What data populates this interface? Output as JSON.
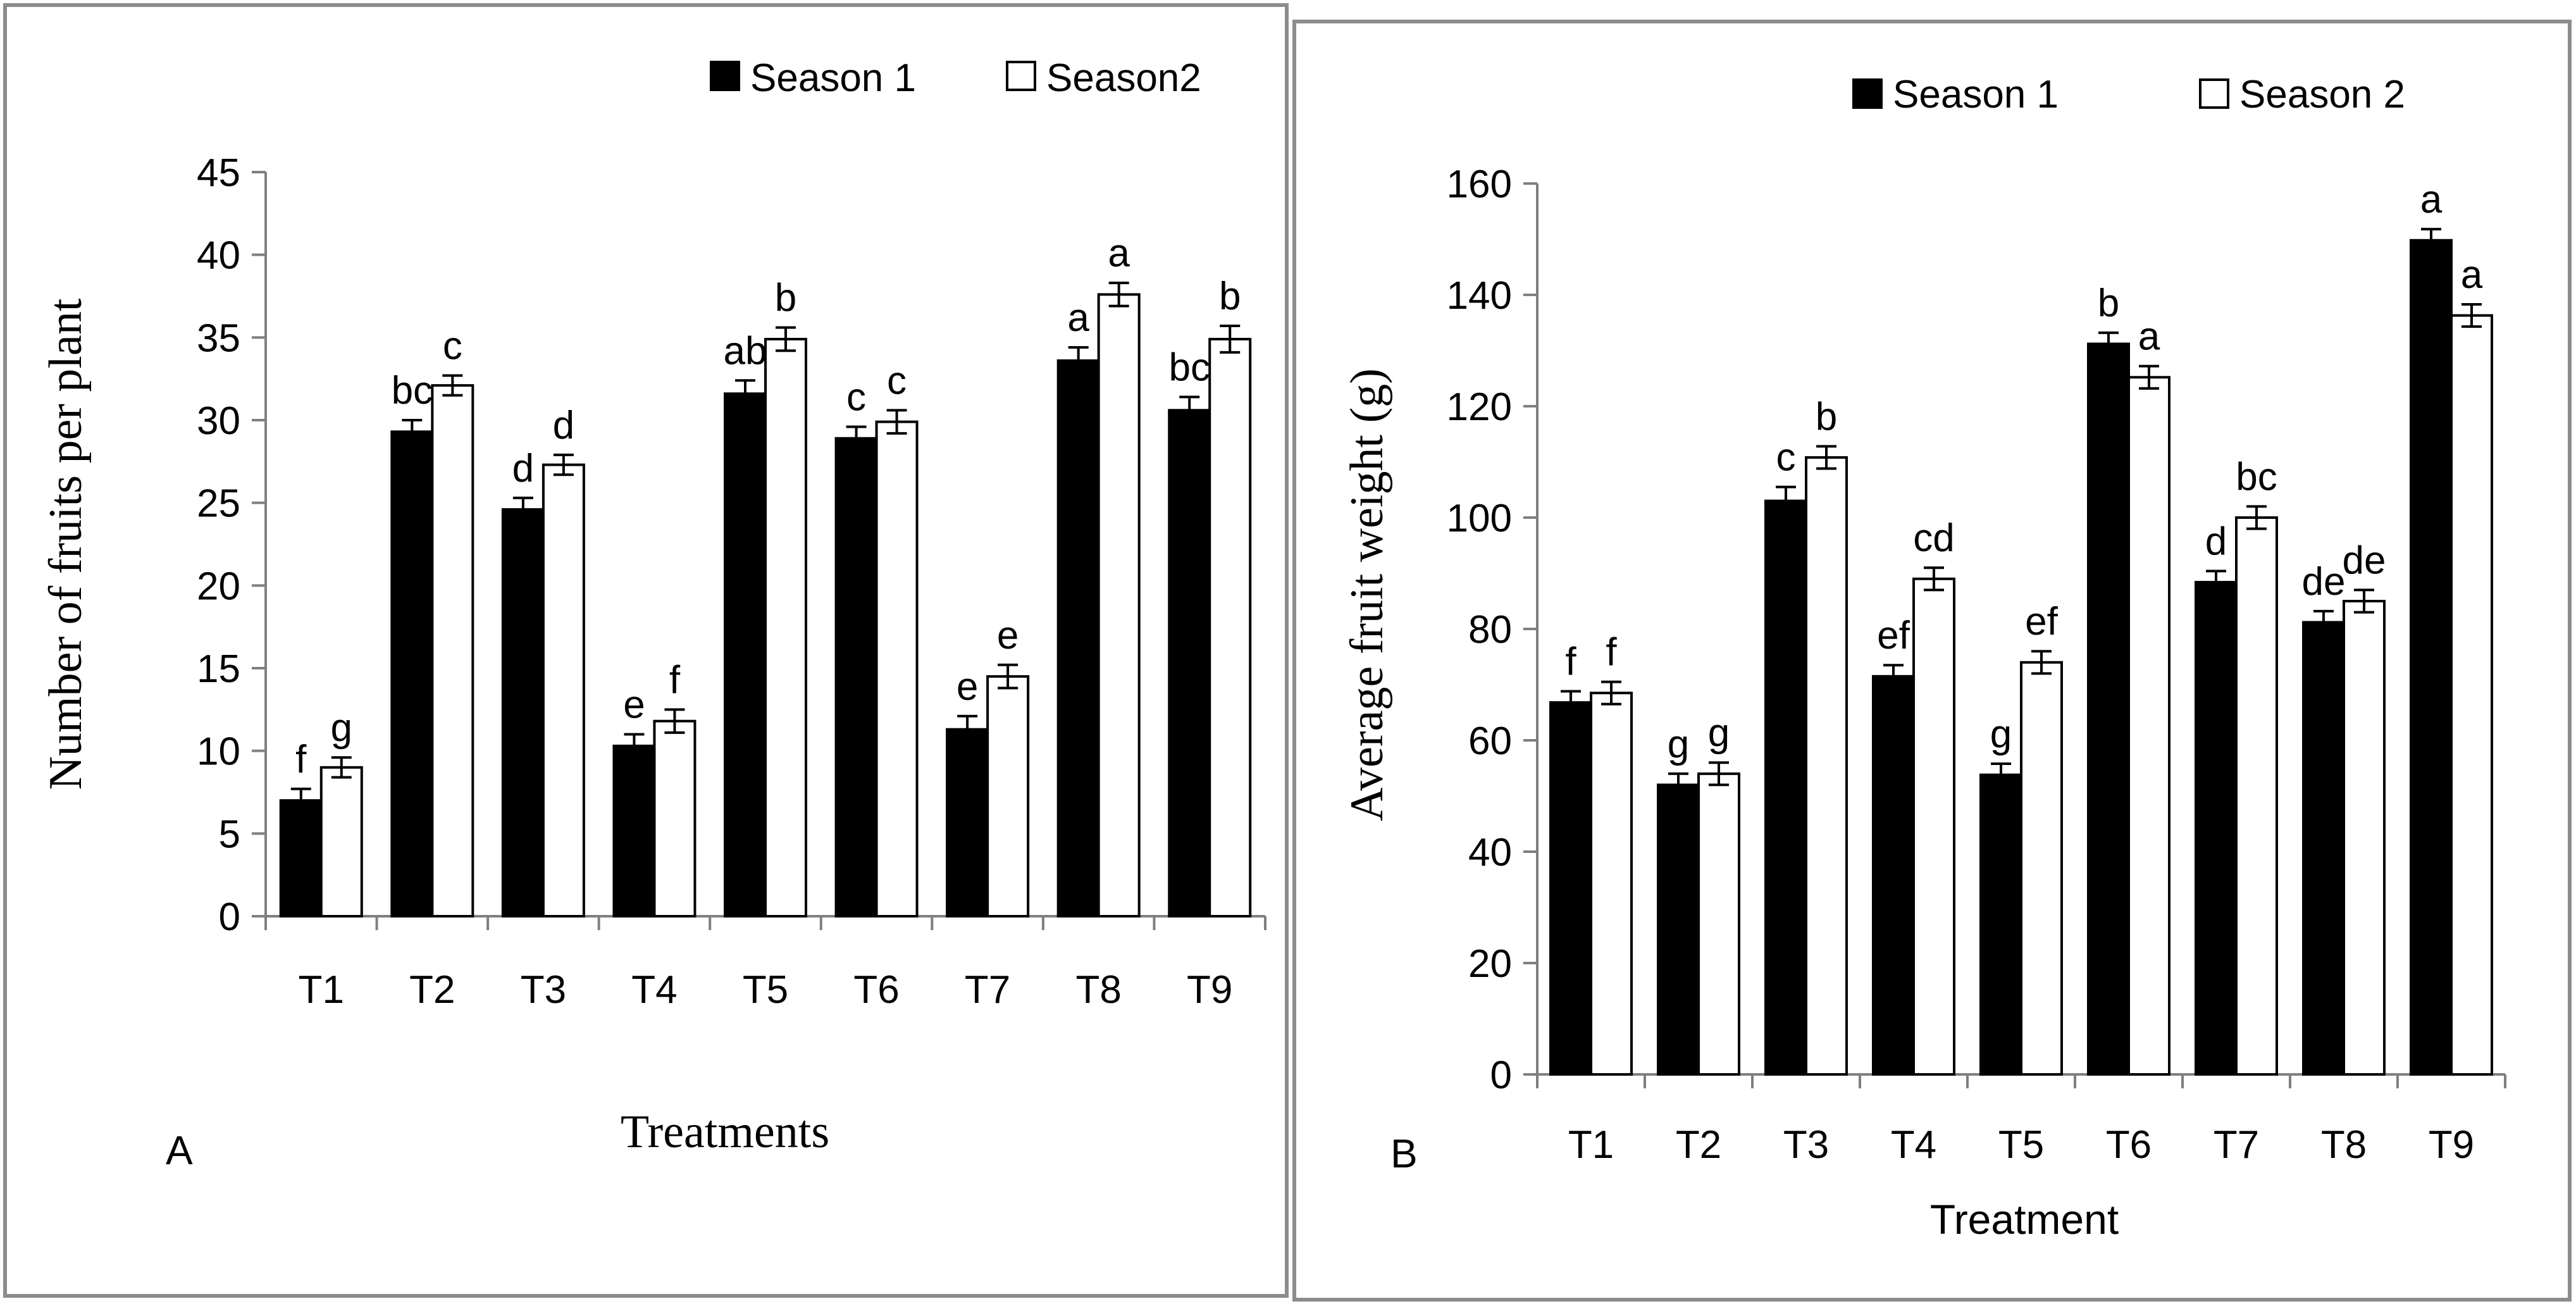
{
  "chart_data": [
    {
      "type": "bar",
      "panel_label": "A",
      "xlabel": "Treatments",
      "ylabel": "Number of fruits per plant",
      "categories": [
        "T1",
        "T2",
        "T3",
        "T4",
        "T5",
        "T6",
        "T7",
        "T8",
        "T9"
      ],
      "ylim": [
        0,
        45
      ],
      "yticks": [
        0,
        5,
        10,
        15,
        20,
        25,
        30,
        35,
        40,
        45
      ],
      "legend": {
        "placement": "top-right"
      },
      "series": [
        {
          "name": "Season 1",
          "fill": "#000000",
          "values": [
            7.0,
            29.3,
            24.6,
            10.3,
            31.6,
            28.9,
            11.3,
            33.6,
            30.6
          ],
          "errors": [
            0.7,
            0.7,
            0.7,
            0.7,
            0.8,
            0.7,
            0.8,
            0.8,
            0.8
          ],
          "letters": [
            "f",
            "bc",
            "d",
            "e",
            "ab",
            "c",
            "e",
            "a",
            "bc"
          ]
        },
        {
          "name": "Season2",
          "fill": "#ffffff",
          "values": [
            9.0,
            32.1,
            27.3,
            11.8,
            34.9,
            29.9,
            14.5,
            37.6,
            34.9
          ],
          "errors": [
            0.6,
            0.6,
            0.6,
            0.7,
            0.7,
            0.7,
            0.7,
            0.7,
            0.8
          ],
          "letters": [
            "g",
            "c",
            "d",
            "f",
            "b",
            "c",
            "e",
            "a",
            "b"
          ]
        }
      ]
    },
    {
      "type": "bar",
      "panel_label": "B",
      "xlabel": "Treatment",
      "ylabel": "Average fruit weight (g)",
      "categories": [
        "T1",
        "T2",
        "T3",
        "T4",
        "T5",
        "T6",
        "T7",
        "T8",
        "T9"
      ],
      "ylim": [
        0,
        160
      ],
      "yticks": [
        0,
        20,
        40,
        60,
        80,
        100,
        120,
        140,
        160
      ],
      "legend": {
        "placement": "top-right"
      },
      "series": [
        {
          "name": "Season 1",
          "fill": "#000000",
          "values": [
            66.8,
            52.0,
            103.0,
            71.5,
            53.8,
            131.2,
            88.4,
            81.2,
            149.8
          ],
          "errors": [
            2.0,
            2.0,
            2.5,
            2.0,
            2.0,
            2.0,
            2.0,
            2.0,
            2.0
          ],
          "letters": [
            "f",
            "g",
            "c",
            "ef",
            "g",
            "b",
            "d",
            "de",
            "a"
          ]
        },
        {
          "name": "Season 2",
          "fill": "#ffffff",
          "values": [
            68.5,
            54.0,
            110.8,
            89.0,
            74.0,
            125.2,
            100.0,
            85.0,
            136.3
          ],
          "errors": [
            2.0,
            2.0,
            2.0,
            2.0,
            2.0,
            2.0,
            2.0,
            2.0,
            2.0
          ],
          "letters": [
            "f",
            "g",
            "b",
            "cd",
            "ef",
            "a",
            "bc",
            "de",
            "a"
          ]
        }
      ]
    }
  ]
}
